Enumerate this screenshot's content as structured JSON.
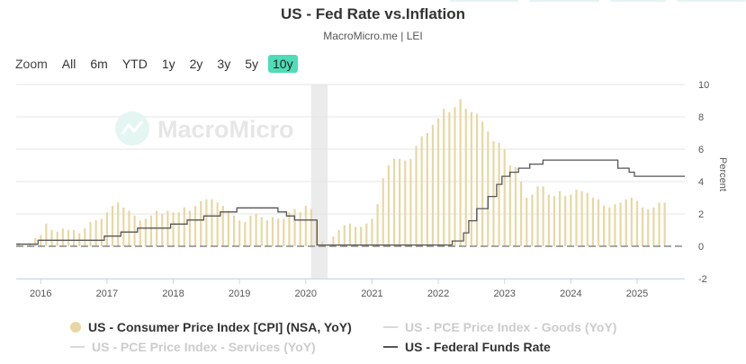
{
  "header": {
    "title": "US - Fed Rate vs.Inflation",
    "subtitle": "MacroMicro.me | LEI"
  },
  "zoom": {
    "label": "Zoom",
    "buttons": [
      "All",
      "6m",
      "YTD",
      "1y",
      "2y",
      "3y",
      "5y",
      "10y"
    ],
    "active": "10y"
  },
  "watermark": {
    "text": "MacroMicro"
  },
  "colors": {
    "cpi": "#e8d7a4",
    "fed": "#555555",
    "inactive": "#d9d9d9",
    "grid": "#e6e6e6",
    "shade": "#ebebeb",
    "zero": "#888888",
    "accent": "#4fdcb6"
  },
  "legend": [
    {
      "label": "US - Consumer Price Index [CPI] (NSA, YoY)",
      "symbol": "dot",
      "active": true
    },
    {
      "label": "US - PCE Price Index - Goods (YoY)",
      "symbol": "line",
      "active": false
    },
    {
      "label": "US - PCE Price Index - Services (YoY)",
      "symbol": "line",
      "active": false
    },
    {
      "label": "US - Federal Funds Rate",
      "symbol": "line",
      "active": true
    }
  ],
  "chart_data": {
    "type": "bar+line",
    "title": "US - Fed Rate vs.Inflation",
    "ylabel": "Percent",
    "ylim": [
      -2,
      10
    ],
    "yticks": [
      -2,
      0,
      2,
      4,
      6,
      8,
      10
    ],
    "xlim": [
      2015.63,
      2025.72
    ],
    "xticks": [
      {
        "label": "2016",
        "x": 2016.0
      },
      {
        "label": "2017",
        "x": 2017.0
      },
      {
        "label": "2018",
        "x": 2018.0
      },
      {
        "label": "2019",
        "x": 2019.0
      },
      {
        "label": "2020",
        "x": 2020.0
      },
      {
        "label": "2021",
        "x": 2021.0
      },
      {
        "label": "2022",
        "x": 2022.0
      },
      {
        "label": "2023",
        "x": 2023.0
      },
      {
        "label": "2024",
        "x": 2024.0
      },
      {
        "label": "2025",
        "x": 2025.0
      }
    ],
    "recession_band": [
      2020.08,
      2020.33
    ],
    "series": [
      {
        "name": "US - Consumer Price Index [CPI] (NSA, YoY)",
        "kind": "bar",
        "start": 2015.667,
        "step": 0.08333,
        "values": [
          0.2,
          0.0,
          0.2,
          0.5,
          0.7,
          1.4,
          1.0,
          0.9,
          1.1,
          1.0,
          1.0,
          0.8,
          1.1,
          1.5,
          1.6,
          1.7,
          2.1,
          2.5,
          2.7,
          2.4,
          2.2,
          1.9,
          1.6,
          1.7,
          1.9,
          2.2,
          2.0,
          2.2,
          2.1,
          2.1,
          2.4,
          2.2,
          2.5,
          2.8,
          2.9,
          2.9,
          2.7,
          2.5,
          2.2,
          1.9,
          1.6,
          1.5,
          1.9,
          2.0,
          1.8,
          1.6,
          1.8,
          1.7,
          1.7,
          2.1,
          2.3,
          2.1,
          2.5,
          2.3,
          1.5,
          0.3,
          0.1,
          0.6,
          1.0,
          1.3,
          1.4,
          1.2,
          1.2,
          1.4,
          1.7,
          2.6,
          4.2,
          5.0,
          5.4,
          5.4,
          5.3,
          5.4,
          6.2,
          6.8,
          7.0,
          7.5,
          7.9,
          8.5,
          8.3,
          8.6,
          9.1,
          8.5,
          8.3,
          8.2,
          7.7,
          7.1,
          6.5,
          6.4,
          6.0,
          5.0,
          4.9,
          4.0,
          3.0,
          3.2,
          3.7,
          3.7,
          3.2,
          3.1,
          3.4,
          3.1,
          3.2,
          3.5,
          3.4,
          3.3,
          3.0,
          2.9,
          2.5,
          2.4,
          2.6,
          2.7,
          2.9,
          3.0,
          2.8,
          2.4,
          2.3,
          2.4,
          2.7,
          2.7
        ]
      },
      {
        "name": "US - Federal Funds Rate",
        "kind": "step",
        "points": [
          [
            2015.63,
            0.13
          ],
          [
            2015.96,
            0.37
          ],
          [
            2016.96,
            0.63
          ],
          [
            2017.21,
            0.88
          ],
          [
            2017.46,
            1.12
          ],
          [
            2017.96,
            1.37
          ],
          [
            2018.21,
            1.62
          ],
          [
            2018.46,
            1.87
          ],
          [
            2018.71,
            2.12
          ],
          [
            2018.96,
            2.37
          ],
          [
            2019.58,
            2.12
          ],
          [
            2019.71,
            1.87
          ],
          [
            2019.83,
            1.62
          ],
          [
            2020.17,
            0.08
          ],
          [
            2022.21,
            0.33
          ],
          [
            2022.38,
            0.83
          ],
          [
            2022.46,
            1.58
          ],
          [
            2022.58,
            2.33
          ],
          [
            2022.75,
            3.08
          ],
          [
            2022.88,
            3.83
          ],
          [
            2022.96,
            4.33
          ],
          [
            2023.08,
            4.58
          ],
          [
            2023.21,
            4.83
          ],
          [
            2023.38,
            5.08
          ],
          [
            2023.58,
            5.33
          ],
          [
            2024.71,
            4.83
          ],
          [
            2024.88,
            4.58
          ],
          [
            2024.96,
            4.33
          ],
          [
            2025.72,
            4.33
          ]
        ]
      }
    ]
  }
}
